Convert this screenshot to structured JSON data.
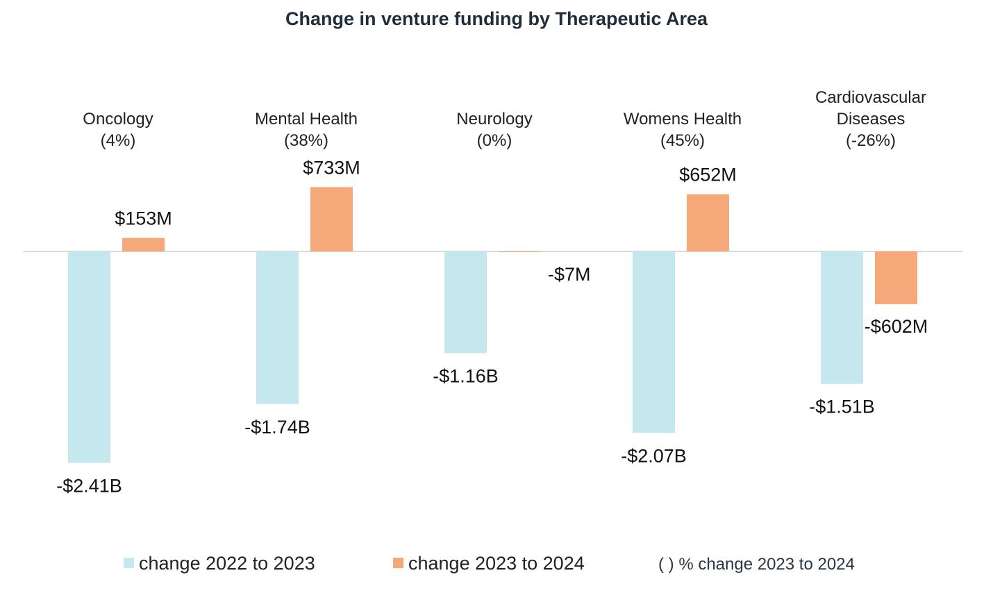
{
  "chart_data": {
    "type": "bar",
    "title": "Change in venture funding by Therapeutic Area",
    "unit": "USD millions",
    "categories": [
      {
        "name_lines": [
          "Oncology"
        ],
        "pct_label": "(4%)"
      },
      {
        "name_lines": [
          "Mental Health"
        ],
        "pct_label": "(38%)"
      },
      {
        "name_lines": [
          "Neurology"
        ],
        "pct_label": "(0%)"
      },
      {
        "name_lines": [
          "Womens Health"
        ],
        "pct_label": "(45%)"
      },
      {
        "name_lines": [
          "Cardiovascular",
          "Diseases"
        ],
        "pct_label": "(-26%)"
      }
    ],
    "series": [
      {
        "name": "change 2022 to 2023",
        "color": "#c5e7ee",
        "values": [
          -2410,
          -1740,
          -1160,
          -2070,
          -1510
        ],
        "labels": [
          "-$2.41B",
          "-$1.74B",
          "-$1.16B",
          "-$2.07B",
          "-$1.51B"
        ]
      },
      {
        "name": "change 2023 to 2024",
        "color": "#f5a97b",
        "values": [
          153,
          733,
          -7,
          652,
          -602
        ],
        "labels": [
          "$153M",
          "$733M",
          "-$7M",
          "$652M",
          "-$602M"
        ]
      }
    ],
    "legend": {
      "position": "bottom",
      "note": "( ) % change 2023 to 2024"
    },
    "grid": false,
    "zero_line_color": "#d9d9d9"
  }
}
